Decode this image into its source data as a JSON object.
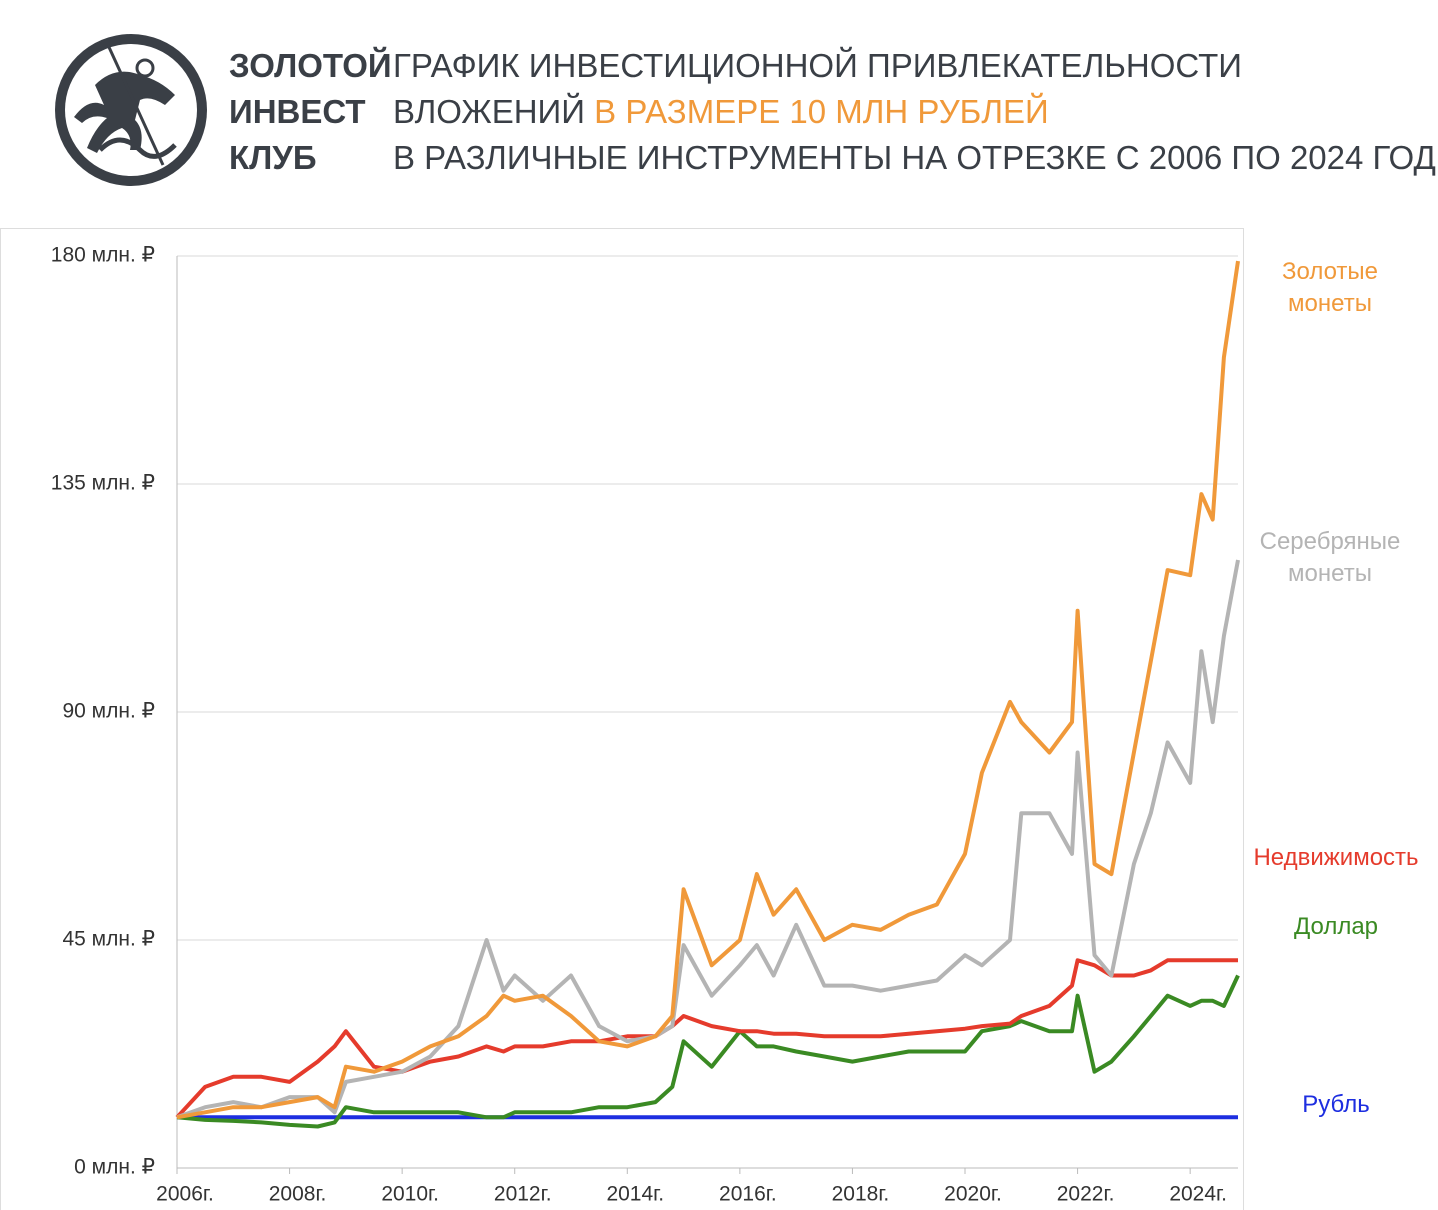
{
  "header": {
    "brand": [
      "ЗОЛОТОЙ",
      "ИНВЕСТ",
      "КЛУБ"
    ],
    "title": [
      "ГРАФИК ИНВЕСТИЦИОННОЙ ПРИВЛЕКАТЕЛЬНОСТИ",
      "ВЛОЖЕНИЙ",
      "В РАЗМЕРЕ 10 МЛН РУБЛЕЙ",
      "В РАЗЛИЧНЫЕ ИНСТРУМЕНТЫ НА ОТРЕЗКЕ С 2006 ПО 2024 ГОД"
    ]
  },
  "chart_data": {
    "type": "line",
    "x": [
      2006,
      2006.5,
      2007,
      2007.5,
      2008,
      2008.5,
      2008.8,
      2009,
      2009.5,
      2010,
      2010.5,
      2011,
      2011.5,
      2011.8,
      2012,
      2012.5,
      2013,
      2013.5,
      2014,
      2014.5,
      2014.8,
      2015,
      2015.5,
      2016,
      2016.3,
      2016.6,
      2017,
      2017.5,
      2018,
      2018.5,
      2019,
      2019.5,
      2020,
      2020.3,
      2020.8,
      2021,
      2021.5,
      2021.9,
      2022,
      2022.3,
      2022.6,
      2023,
      2023.3,
      2023.6,
      2024,
      2024.2,
      2024.4,
      2024.6,
      2024.85
    ],
    "series": [
      {
        "name": "Золотые монеты",
        "color": "#f0993a",
        "values": [
          10,
          11,
          12,
          12,
          13,
          14,
          12,
          20,
          19,
          21,
          24,
          26,
          30,
          34,
          33,
          34,
          30,
          25,
          24,
          26,
          30,
          55,
          40,
          45,
          58,
          50,
          55,
          45,
          48,
          47,
          50,
          52,
          62,
          78,
          92,
          88,
          82,
          88,
          110,
          60,
          58,
          82,
          100,
          118,
          117,
          133,
          128,
          160,
          179
        ]
      },
      {
        "name": "Серебряные монеты",
        "color": "#b4b4b4",
        "values": [
          10,
          12,
          13,
          12,
          14,
          14,
          11,
          17,
          18,
          19,
          22,
          28,
          45,
          35,
          38,
          33,
          38,
          28,
          25,
          26,
          28,
          44,
          34,
          40,
          44,
          38,
          48,
          36,
          36,
          35,
          36,
          37,
          42,
          40,
          45,
          70,
          70,
          62,
          82,
          42,
          38,
          60,
          70,
          84,
          76,
          102,
          88,
          105,
          120
        ]
      },
      {
        "name": "Недвижимость",
        "color": "#e53b2c",
        "values": [
          10,
          16,
          18,
          18,
          17,
          21,
          24,
          27,
          20,
          19,
          21,
          22,
          24,
          23,
          24,
          24,
          25,
          25,
          26,
          26,
          28,
          30,
          28,
          27,
          27,
          26.5,
          26.5,
          26,
          26,
          26,
          26.5,
          27,
          27.5,
          28,
          28.5,
          30,
          32,
          36,
          41,
          40,
          38,
          38,
          39,
          41,
          41,
          41,
          41,
          41,
          41
        ]
      },
      {
        "name": "Доллар",
        "color": "#3a8a23",
        "values": [
          10,
          9.5,
          9.3,
          9,
          8.5,
          8.2,
          9,
          12,
          11,
          11,
          11,
          11,
          10,
          10,
          11,
          11,
          11,
          12,
          12,
          13,
          16,
          25,
          20,
          27,
          24,
          24,
          23,
          22,
          21,
          22,
          23,
          23,
          23,
          27,
          28,
          29,
          27,
          27,
          34,
          19,
          21,
          26,
          30,
          34,
          32,
          33,
          33,
          32,
          38
        ]
      },
      {
        "name": "Рубль",
        "color": "#1d2ee0",
        "values": [
          10,
          10,
          10,
          10,
          10,
          10,
          10,
          10,
          10,
          10,
          10,
          10,
          10,
          10,
          10,
          10,
          10,
          10,
          10,
          10,
          10,
          10,
          10,
          10,
          10,
          10,
          10,
          10,
          10,
          10,
          10,
          10,
          10,
          10,
          10,
          10,
          10,
          10,
          10,
          10,
          10,
          10,
          10,
          10,
          10,
          10,
          10,
          10,
          10
        ]
      }
    ],
    "xlim": [
      2006,
      2024.85
    ],
    "xticks": [
      {
        "value": 2006,
        "label": "2006г."
      },
      {
        "value": 2008,
        "label": "2008г."
      },
      {
        "value": 2010,
        "label": "2010г."
      },
      {
        "value": 2012,
        "label": "2012г."
      },
      {
        "value": 2014,
        "label": "2014г."
      },
      {
        "value": 2016,
        "label": "2016г."
      },
      {
        "value": 2018,
        "label": "2018г."
      },
      {
        "value": 2020,
        "label": "2020г."
      },
      {
        "value": 2022,
        "label": "2022г."
      },
      {
        "value": 2024,
        "label": "2024г."
      }
    ],
    "ylim": [
      0,
      180
    ],
    "yticks": [
      {
        "value": 0,
        "label": "0 млн. ₽"
      },
      {
        "value": 45,
        "label": "45 млн. ₽"
      },
      {
        "value": 90,
        "label": "90 млн. ₽"
      },
      {
        "value": 135,
        "label": "135 млн. ₽"
      },
      {
        "value": 180,
        "label": "180 млн. ₽"
      }
    ],
    "grid": true
  }
}
